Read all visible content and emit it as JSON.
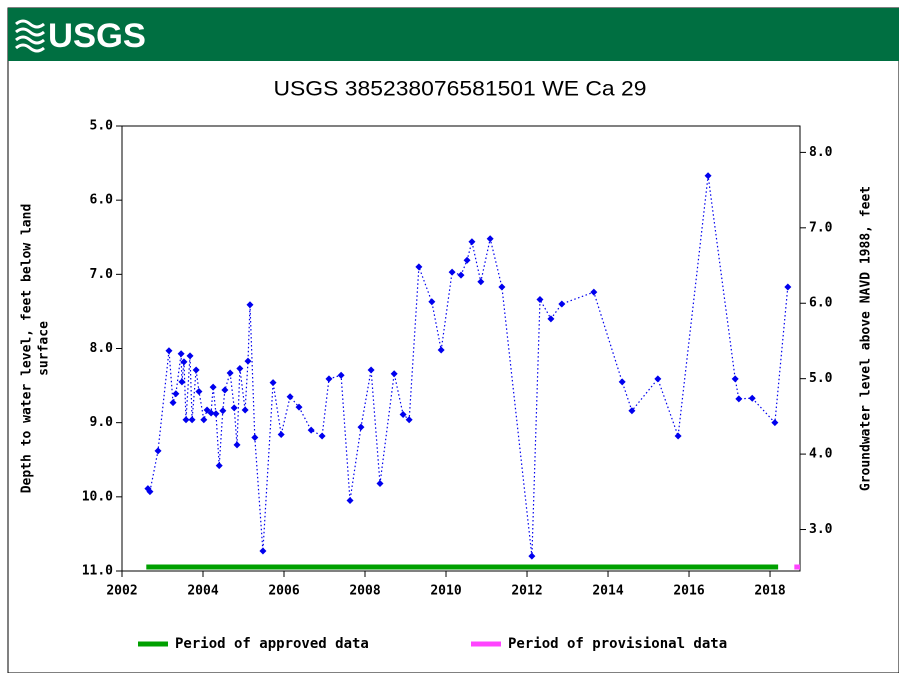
{
  "header": {
    "logo": "USGS"
  },
  "chart_data": {
    "type": "line",
    "title": "USGS 385238076581501 WE Ca  29",
    "ylabel": [
      "Depth to water level, feet below land",
      "surface"
    ],
    "y2label": "Groundwater level above NAVD 1988, feet",
    "invert_y": true,
    "color": "#0000ee",
    "x": [
      2002.64,
      2002.69,
      2002.89,
      2003.16,
      2003.26,
      2003.33,
      2003.46,
      2003.48,
      2003.53,
      2003.58,
      2003.68,
      2003.73,
      2003.83,
      2003.9,
      2004.02,
      2004.1,
      2004.2,
      2004.25,
      2004.32,
      2004.4,
      2004.49,
      2004.54,
      2004.67,
      2004.77,
      2004.84,
      2004.91,
      2005.04,
      2005.11,
      2005.16,
      2005.28,
      2005.48,
      2005.73,
      2005.93,
      2006.15,
      2006.37,
      2006.67,
      2006.94,
      2007.11,
      2007.41,
      2007.63,
      2007.9,
      2008.15,
      2008.37,
      2008.72,
      2008.94,
      2009.09,
      2009.33,
      2009.65,
      2009.88,
      2010.15,
      2010.37,
      2010.52,
      2010.64,
      2010.86,
      2011.09,
      2011.38,
      2012.12,
      2012.32,
      2012.59,
      2012.86,
      2013.65,
      2014.35,
      2014.59,
      2015.23,
      2015.73,
      2016.47,
      2017.14,
      2017.23,
      2017.56,
      2018.12,
      2018.44
    ],
    "values": [
      9.89,
      9.93,
      9.38,
      8.03,
      8.73,
      8.61,
      8.07,
      8.45,
      8.18,
      8.96,
      8.1,
      8.96,
      8.29,
      8.58,
      8.96,
      8.83,
      8.87,
      8.52,
      8.88,
      9.58,
      8.84,
      8.56,
      8.33,
      8.8,
      9.3,
      8.27,
      8.83,
      8.17,
      7.41,
      9.2,
      10.73,
      8.46,
      9.16,
      8.65,
      8.79,
      9.1,
      9.18,
      8.41,
      8.36,
      10.05,
      9.06,
      8.29,
      9.82,
      8.34,
      8.89,
      8.96,
      6.9,
      7.37,
      8.02,
      6.97,
      7.01,
      6.81,
      6.56,
      7.1,
      6.52,
      7.17,
      10.8,
      7.34,
      7.6,
      7.4,
      7.24,
      8.45,
      8.84,
      8.41,
      9.18,
      5.67,
      8.41,
      8.68,
      8.67,
      9.0,
      7.17
    ],
    "xlim": [
      2002,
      2018.74
    ],
    "xticks": [
      2002,
      2004,
      2006,
      2008,
      2010,
      2012,
      2014,
      2016,
      2018
    ],
    "ylim": [
      5,
      11
    ],
    "yticks": [
      {
        "value": 5,
        "label": "5.0"
      },
      {
        "value": 6,
        "label": "6.0"
      },
      {
        "value": 7,
        "label": "7.0"
      },
      {
        "value": 8,
        "label": "8.0"
      },
      {
        "value": 9,
        "label": "9.0"
      },
      {
        "value": 10,
        "label": "10.0"
      },
      {
        "value": 11,
        "label": "11.0"
      }
    ],
    "y2lim": [
      2.45,
      8.35
    ],
    "y2ticks": [
      {
        "value": 3,
        "label": "3.0"
      },
      {
        "value": 4,
        "label": "4.0"
      },
      {
        "value": 5,
        "label": "5.0"
      },
      {
        "value": 6,
        "label": "6.0"
      },
      {
        "value": 7,
        "label": "7.0"
      },
      {
        "value": 8,
        "label": "8.0"
      }
    ],
    "periods": [
      {
        "name": "Period of approved data",
        "color": "#00a000",
        "start": 2002.6,
        "end": 2018.2
      },
      {
        "name": "Period of provisional data",
        "color": "#ff44ff",
        "start": 2018.6,
        "end": 2018.74
      }
    ]
  }
}
